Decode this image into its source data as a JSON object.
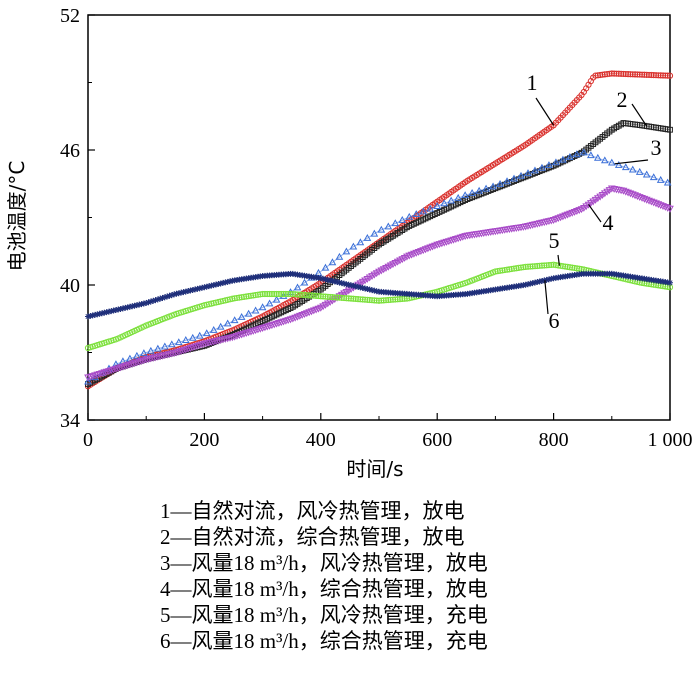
{
  "chart_data": {
    "type": "line",
    "title": "",
    "xlabel": "时间/s",
    "ylabel": "电池温度/°C",
    "xlim": [
      0,
      1000
    ],
    "ylim": [
      34,
      52
    ],
    "xticks": [
      0,
      200,
      400,
      600,
      800,
      1000
    ],
    "xtick_labels": [
      "0",
      "200",
      "400",
      "600",
      "800",
      "1 000"
    ],
    "yticks": [
      34,
      40,
      46,
      52
    ],
    "ytick_labels": [
      "34",
      "40",
      "46",
      "52"
    ],
    "grid": false,
    "legend_position": "bottom",
    "series": [
      {
        "name": "1",
        "color": "#d9302c",
        "marker": "circle",
        "points": [
          [
            0,
            35.5
          ],
          [
            50,
            36.3
          ],
          [
            100,
            36.8
          ],
          [
            150,
            37.1
          ],
          [
            200,
            37.5
          ],
          [
            250,
            38.0
          ],
          [
            300,
            38.6
          ],
          [
            350,
            39.3
          ],
          [
            400,
            40.1
          ],
          [
            450,
            41.0
          ],
          [
            500,
            41.9
          ],
          [
            550,
            42.8
          ],
          [
            600,
            43.7
          ],
          [
            650,
            44.6
          ],
          [
            700,
            45.4
          ],
          [
            750,
            46.2
          ],
          [
            800,
            47.1
          ],
          [
            850,
            48.5
          ],
          [
            870,
            49.3
          ],
          [
            900,
            49.4
          ],
          [
            1000,
            49.3
          ]
        ]
      },
      {
        "name": "2",
        "color": "#222222",
        "marker": "square",
        "points": [
          [
            0,
            35.6
          ],
          [
            50,
            36.3
          ],
          [
            100,
            36.7
          ],
          [
            150,
            37.0
          ],
          [
            200,
            37.3
          ],
          [
            250,
            37.8
          ],
          [
            300,
            38.4
          ],
          [
            350,
            39.0
          ],
          [
            400,
            39.8
          ],
          [
            450,
            40.8
          ],
          [
            500,
            41.8
          ],
          [
            550,
            42.6
          ],
          [
            600,
            43.2
          ],
          [
            650,
            43.8
          ],
          [
            700,
            44.3
          ],
          [
            750,
            44.8
          ],
          [
            800,
            45.3
          ],
          [
            850,
            45.9
          ],
          [
            900,
            46.9
          ],
          [
            920,
            47.2
          ],
          [
            950,
            47.1
          ],
          [
            1000,
            46.9
          ]
        ]
      },
      {
        "name": "3",
        "color": "#3a6fd8",
        "marker": "triangle",
        "points": [
          [
            0,
            35.7
          ],
          [
            50,
            36.5
          ],
          [
            100,
            37.0
          ],
          [
            150,
            37.4
          ],
          [
            200,
            37.8
          ],
          [
            250,
            38.4
          ],
          [
            300,
            39.0
          ],
          [
            350,
            39.7
          ],
          [
            400,
            40.6
          ],
          [
            450,
            41.6
          ],
          [
            500,
            42.4
          ],
          [
            550,
            43.0
          ],
          [
            600,
            43.5
          ],
          [
            650,
            44.0
          ],
          [
            700,
            44.4
          ],
          [
            750,
            44.9
          ],
          [
            800,
            45.4
          ],
          [
            850,
            45.9
          ],
          [
            880,
            45.6
          ],
          [
            950,
            45.0
          ],
          [
            1000,
            44.5
          ]
        ]
      },
      {
        "name": "4",
        "color": "#a84bc8",
        "marker": "triangle-down",
        "points": [
          [
            0,
            35.9
          ],
          [
            50,
            36.3
          ],
          [
            100,
            36.7
          ],
          [
            150,
            37.0
          ],
          [
            200,
            37.4
          ],
          [
            250,
            37.7
          ],
          [
            300,
            38.1
          ],
          [
            350,
            38.5
          ],
          [
            400,
            39.0
          ],
          [
            450,
            39.8
          ],
          [
            500,
            40.6
          ],
          [
            550,
            41.3
          ],
          [
            600,
            41.8
          ],
          [
            650,
            42.2
          ],
          [
            700,
            42.4
          ],
          [
            750,
            42.6
          ],
          [
            800,
            42.9
          ],
          [
            850,
            43.4
          ],
          [
            900,
            44.3
          ],
          [
            920,
            44.2
          ],
          [
            1000,
            43.4
          ]
        ]
      },
      {
        "name": "5",
        "color": "#7be03a",
        "marker": "circle",
        "points": [
          [
            0,
            37.2
          ],
          [
            50,
            37.6
          ],
          [
            100,
            38.2
          ],
          [
            150,
            38.7
          ],
          [
            200,
            39.1
          ],
          [
            250,
            39.4
          ],
          [
            300,
            39.6
          ],
          [
            350,
            39.6
          ],
          [
            400,
            39.5
          ],
          [
            450,
            39.4
          ],
          [
            500,
            39.3
          ],
          [
            550,
            39.4
          ],
          [
            600,
            39.7
          ],
          [
            650,
            40.1
          ],
          [
            700,
            40.6
          ],
          [
            750,
            40.8
          ],
          [
            800,
            40.9
          ],
          [
            850,
            40.7
          ],
          [
            900,
            40.4
          ],
          [
            950,
            40.1
          ],
          [
            1000,
            39.9
          ]
        ]
      },
      {
        "name": "6",
        "color": "#1f2f7a",
        "marker": "star",
        "points": [
          [
            0,
            38.6
          ],
          [
            50,
            38.9
          ],
          [
            100,
            39.2
          ],
          [
            150,
            39.6
          ],
          [
            200,
            39.9
          ],
          [
            250,
            40.2
          ],
          [
            300,
            40.4
          ],
          [
            350,
            40.5
          ],
          [
            400,
            40.3
          ],
          [
            450,
            40.0
          ],
          [
            500,
            39.7
          ],
          [
            550,
            39.6
          ],
          [
            600,
            39.5
          ],
          [
            650,
            39.6
          ],
          [
            700,
            39.8
          ],
          [
            750,
            40.0
          ],
          [
            800,
            40.3
          ],
          [
            850,
            40.5
          ],
          [
            900,
            40.5
          ],
          [
            950,
            40.3
          ],
          [
            1000,
            40.1
          ]
        ]
      }
    ],
    "series_labels": [
      "1",
      "2",
      "3",
      "4",
      "5",
      "6"
    ],
    "legend": [
      "1—自然对流，风冷热管理，放电",
      "2—自然对流，综合热管理，放电",
      "3—风量18 m³/h，风冷热管理，放电",
      "4—风量18 m³/h，综合热管理，放电",
      "5—风量18 m³/h，风冷热管理，充电",
      "6—风量18 m³/h，综合热管理，充电"
    ]
  }
}
